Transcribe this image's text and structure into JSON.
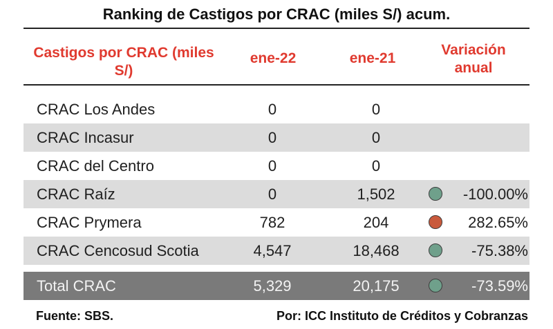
{
  "title": "Ranking de Castigos por CRAC (miles S/) acum.",
  "headers": {
    "name": "Castigos por CRAC (miles S/)",
    "col1": "ene-22",
    "col2": "ene-21",
    "col3": "Variación anual"
  },
  "colors": {
    "increase": "#c95a3c",
    "decrease": "#6fa08b",
    "header": "#e03a2f"
  },
  "rows": [
    {
      "name": "CRAC Los Andes",
      "v1": "0",
      "v2": "0",
      "pct": "",
      "indicator": ""
    },
    {
      "name": "CRAC Incasur",
      "v1": "0",
      "v2": "0",
      "pct": "",
      "indicator": ""
    },
    {
      "name": "CRAC del Centro",
      "v1": "0",
      "v2": "0",
      "pct": "",
      "indicator": ""
    },
    {
      "name": "CRAC Raíz",
      "v1": "0",
      "v2": "1,502",
      "pct": "-100.00%",
      "indicator": "decrease"
    },
    {
      "name": "CRAC Prymera",
      "v1": "782",
      "v2": "204",
      "pct": "282.65%",
      "indicator": "increase"
    },
    {
      "name": "CRAC Cencosud Scotia",
      "v1": "4,547",
      "v2": "18,468",
      "pct": "-75.38%",
      "indicator": "decrease"
    }
  ],
  "total": {
    "name": "Total CRAC",
    "v1": "5,329",
    "v2": "20,175",
    "pct": "-73.59%",
    "indicator": "decrease"
  },
  "footer": {
    "source": "Fuente: SBS.",
    "credit": "Por: ICC Instituto de Créditos y Cobranzas"
  }
}
